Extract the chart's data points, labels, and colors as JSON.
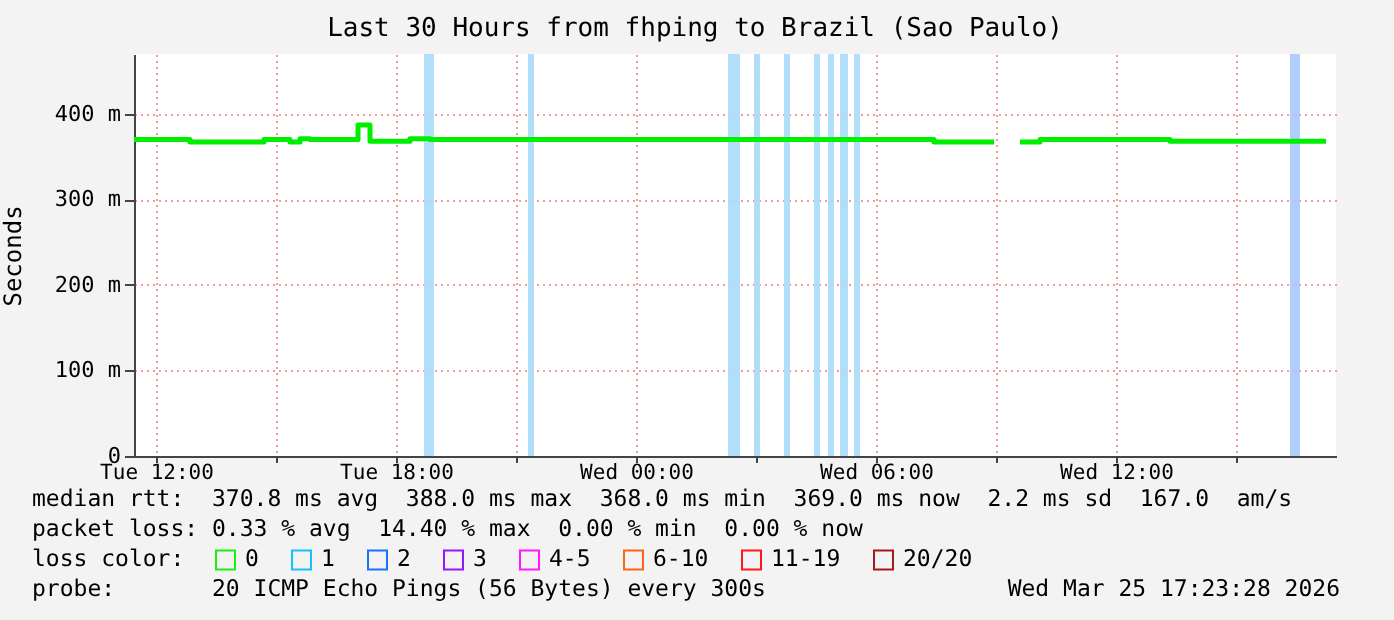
{
  "chart_data": {
    "type": "step",
    "title": "Last 30 Hours from fhping to Brazil (Sao Paulo)",
    "ylabel": "Seconds",
    "x": [
      "2026-03-24T11:27",
      "2026-03-24T12:51",
      "2026-03-24T14:42",
      "2026-03-24T15:21",
      "2026-03-24T15:36",
      "2026-03-24T15:51",
      "2026-03-24T17:03",
      "2026-03-24T17:21",
      "2026-03-24T18:21",
      "2026-03-24T18:51",
      "2026-03-25T07:27",
      "2026-03-25T08:57",
      "2026-03-25T09:00",
      "2026-03-25T09:36",
      "2026-03-25T10:06",
      "2026-03-25T13:21",
      "2026-03-25T17:15"
    ],
    "series": [
      {
        "name": "0",
        "color": "#00ee00",
        "values": [
          370,
          367,
          370,
          367,
          371,
          370,
          387,
          368,
          371,
          370,
          367,
          367,
          null,
          367,
          370,
          368,
          368
        ]
      },
      {
        "name": "1",
        "color": "#00bbff",
        "values": [
          null,
          null,
          null,
          null,
          null,
          null,
          null,
          null,
          null,
          null,
          null,
          null,
          null,
          null,
          null,
          null,
          null
        ]
      },
      {
        "name": "2",
        "color": "#0066ff",
        "values": [
          null,
          null,
          null,
          null,
          null,
          null,
          null,
          null,
          null,
          null,
          null,
          null,
          null,
          null,
          null,
          null,
          null
        ]
      },
      {
        "name": "3",
        "color": "#8800ff",
        "values": [
          null,
          null,
          null,
          null,
          null,
          null,
          null,
          null,
          null,
          null,
          null,
          null,
          null,
          null,
          null,
          null,
          null
        ]
      },
      {
        "name": "4-5",
        "color": "#ff00ff",
        "values": [
          null,
          null,
          null,
          null,
          null,
          null,
          null,
          null,
          null,
          null,
          null,
          null,
          null,
          null,
          null,
          null,
          null
        ]
      },
      {
        "name": "6-10",
        "color": "#ff5500",
        "values": [
          null,
          null,
          null,
          null,
          null,
          null,
          null,
          null,
          null,
          null,
          null,
          null,
          null,
          null,
          null,
          null,
          null
        ]
      },
      {
        "name": "11-19",
        "color": "#ff0000",
        "values": [
          null,
          null,
          null,
          null,
          null,
          null,
          null,
          null,
          null,
          null,
          null,
          null,
          null,
          null,
          null,
          null,
          null
        ]
      },
      {
        "name": "20/20",
        "color": "#a10000",
        "values": [
          null,
          null,
          null,
          null,
          null,
          null,
          null,
          null,
          null,
          null,
          null,
          null,
          null,
          null,
          null,
          null,
          null
        ]
      }
    ],
    "legend_title": "loss color:",
    "legend": "bottom",
    "xlim": [
      "2026-03-24T11:27",
      "2026-03-25T17:30"
    ],
    "xticks": [
      {
        "value": "2026-03-24T12:00",
        "label": "Tue 12:00"
      },
      {
        "value": "2026-03-24T15:00",
        "label": null
      },
      {
        "value": "2026-03-24T18:00",
        "label": "Tue 18:00"
      },
      {
        "value": "2026-03-24T21:00",
        "label": null
      },
      {
        "value": "2026-03-25T00:00",
        "label": "Wed 00:00"
      },
      {
        "value": "2026-03-25T03:00",
        "label": null
      },
      {
        "value": "2026-03-25T06:00",
        "label": "Wed 06:00"
      },
      {
        "value": "2026-03-25T09:00",
        "label": null
      },
      {
        "value": "2026-03-25T12:00",
        "label": "Wed 12:00"
      },
      {
        "value": "2026-03-25T15:00",
        "label": null
      }
    ],
    "ylim": [
      0,
      470
    ],
    "yticks": [
      {
        "value": 0,
        "label": "0"
      },
      {
        "value": 100,
        "label": "100 m"
      },
      {
        "value": 200,
        "label": "200 m"
      },
      {
        "value": 300,
        "label": "300 m"
      },
      {
        "value": 400,
        "label": "400 m"
      }
    ],
    "grid": true,
    "bands": [
      {
        "axis": "x",
        "from": "2026-03-24T18:42",
        "to": "2026-03-24T18:57",
        "color": "#a8dcf8"
      },
      {
        "axis": "x",
        "from": "2026-03-24T21:18",
        "to": "2026-03-24T21:27",
        "color": "#a8dcf8"
      },
      {
        "axis": "x",
        "from": "2026-03-25T02:18",
        "to": "2026-03-25T02:36",
        "color": "#a8dcf8"
      },
      {
        "axis": "x",
        "from": "2026-03-25T02:57",
        "to": "2026-03-25T03:06",
        "color": "#a8dcf8"
      },
      {
        "axis": "x",
        "from": "2026-03-25T03:42",
        "to": "2026-03-25T03:51",
        "color": "#a8dcf8"
      },
      {
        "axis": "x",
        "from": "2026-03-25T04:27",
        "to": "2026-03-25T04:36",
        "color": "#a8dcf8"
      },
      {
        "axis": "x",
        "from": "2026-03-25T04:48",
        "to": "2026-03-25T04:57",
        "color": "#a8dcf8"
      },
      {
        "axis": "x",
        "from": "2026-03-25T05:06",
        "to": "2026-03-25T05:18",
        "color": "#a8dcf8"
      },
      {
        "axis": "x",
        "from": "2026-03-25T05:27",
        "to": "2026-03-25T05:36",
        "color": "#a8dcf8"
      },
      {
        "axis": "x",
        "from": "2026-03-25T16:21",
        "to": "2026-03-25T16:36",
        "color": "#a8c8f8"
      }
    ],
    "annotations": [
      "median rtt:  370.8 ms avg  388.0 ms max  368.0 ms min  369.0 ms now  2.2 ms sd  167.0  am/s",
      "packet loss: 0.33 % avg  14.40 % max  0.00 % min  0.00 % now",
      "probe:       20 ICMP Echo Pings (56 Bytes) every 300s",
      "Wed Mar 25 17:23:28 2026"
    ]
  }
}
